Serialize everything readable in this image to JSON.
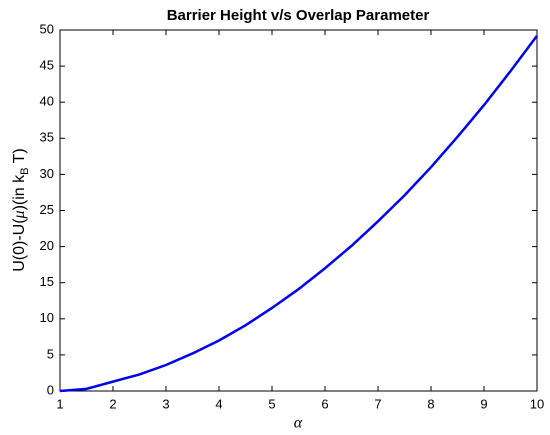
{
  "chart_data": {
    "type": "line",
    "title": "Barrier Height v/s Overlap Parameter",
    "xlabel": "α",
    "ylabel": [
      "U(0)-U(",
      "μ",
      ")(in k",
      "B",
      " T)"
    ],
    "x": [
      1,
      1.5,
      2,
      2.5,
      3,
      3.5,
      4,
      4.5,
      5,
      5.5,
      6,
      6.5,
      7,
      7.5,
      8,
      8.5,
      9,
      9.5,
      10
    ],
    "series": [
      {
        "color": "#0000ee",
        "values": [
          0,
          0.3,
          1.3,
          2.3,
          3.6,
          5.2,
          7,
          9.1,
          11.5,
          14.1,
          17,
          20.1,
          23.5,
          27.1,
          31,
          35.2,
          39.6,
          44.3,
          49.2
        ]
      }
    ],
    "xlim": [
      1,
      10
    ],
    "xticks": [
      1,
      2,
      3,
      4,
      5,
      6,
      7,
      8,
      9,
      10
    ],
    "ylim": [
      0,
      50
    ],
    "yticks": [
      0,
      5,
      10,
      15,
      20,
      25,
      30,
      35,
      40,
      45,
      50
    ],
    "grid": false
  }
}
